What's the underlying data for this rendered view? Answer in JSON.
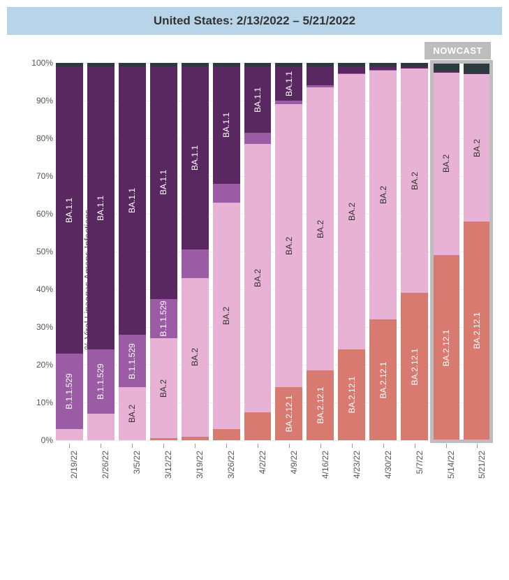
{
  "title": "United States: 2/13/2022 – 5/21/2022",
  "y_axis_title": "% Viral Lineages Among Infections",
  "nowcast_label": "NOWCAST",
  "variants": {
    "other": {
      "color": "#2d3a3d"
    },
    "ba11": {
      "color": "#5a2860",
      "label": "BA.1.1"
    },
    "b11529": {
      "color": "#9b5ba5",
      "label": "B.1.1.529"
    },
    "ba2": {
      "color": "#e8b2d4",
      "label": "BA.2",
      "dark_text": true
    },
    "ba2121": {
      "color": "#d87a70",
      "label": "BA.2.12.1"
    }
  },
  "y_ticks": [
    0,
    10,
    20,
    30,
    40,
    50,
    60,
    70,
    80,
    90,
    100
  ],
  "y_max": 100,
  "nowcast_start_index": 12,
  "weeks": [
    {
      "date": "2/19/22",
      "stack": [
        {
          "v": "ba2121",
          "pct": 0.0
        },
        {
          "v": "ba2",
          "pct": 3.0
        },
        {
          "v": "b11529",
          "pct": 20.0,
          "show": true
        },
        {
          "v": "ba11",
          "pct": 76.0,
          "show": true
        },
        {
          "v": "other",
          "pct": 1.0
        }
      ]
    },
    {
      "date": "2/26/22",
      "stack": [
        {
          "v": "ba2121",
          "pct": 0.0
        },
        {
          "v": "ba2",
          "pct": 7.0
        },
        {
          "v": "b11529",
          "pct": 17.0,
          "show": true
        },
        {
          "v": "ba11",
          "pct": 75.0,
          "show": true
        },
        {
          "v": "other",
          "pct": 1.0
        }
      ]
    },
    {
      "date": "3/5/22",
      "stack": [
        {
          "v": "ba2121",
          "pct": 0.0
        },
        {
          "v": "ba2",
          "pct": 14.0,
          "show": true
        },
        {
          "v": "b11529",
          "pct": 14.0,
          "show": true
        },
        {
          "v": "ba11",
          "pct": 71.0,
          "show": true
        },
        {
          "v": "other",
          "pct": 1.0
        }
      ]
    },
    {
      "date": "3/12/22",
      "stack": [
        {
          "v": "ba2121",
          "pct": 0.5
        },
        {
          "v": "ba2",
          "pct": 26.5,
          "show": true
        },
        {
          "v": "b11529",
          "pct": 10.5,
          "show": true
        },
        {
          "v": "ba11",
          "pct": 61.5,
          "show": true
        },
        {
          "v": "other",
          "pct": 1.0
        }
      ]
    },
    {
      "date": "3/19/22",
      "stack": [
        {
          "v": "ba2121",
          "pct": 1.0
        },
        {
          "v": "ba2",
          "pct": 42.0,
          "show": true
        },
        {
          "v": "b11529",
          "pct": 7.5
        },
        {
          "v": "ba11",
          "pct": 48.5,
          "show": true
        },
        {
          "v": "other",
          "pct": 1.0
        }
      ]
    },
    {
      "date": "3/26/22",
      "stack": [
        {
          "v": "ba2121",
          "pct": 3.0
        },
        {
          "v": "ba2",
          "pct": 60.0,
          "show": true
        },
        {
          "v": "b11529",
          "pct": 5.0
        },
        {
          "v": "ba11",
          "pct": 31.0,
          "show": true
        },
        {
          "v": "other",
          "pct": 1.0
        }
      ]
    },
    {
      "date": "4/2/22",
      "stack": [
        {
          "v": "ba2121",
          "pct": 7.5
        },
        {
          "v": "ba2",
          "pct": 71.0,
          "show": true
        },
        {
          "v": "b11529",
          "pct": 3.0
        },
        {
          "v": "ba11",
          "pct": 17.5,
          "show": true
        },
        {
          "v": "other",
          "pct": 1.0
        }
      ]
    },
    {
      "date": "4/9/22",
      "stack": [
        {
          "v": "ba2121",
          "pct": 14.0,
          "show": true
        },
        {
          "v": "ba2",
          "pct": 75.0,
          "show": true
        },
        {
          "v": "b11529",
          "pct": 1.0
        },
        {
          "v": "ba11",
          "pct": 9.0,
          "show": true
        },
        {
          "v": "other",
          "pct": 1.0
        }
      ]
    },
    {
      "date": "4/16/22",
      "stack": [
        {
          "v": "ba2121",
          "pct": 18.5,
          "show": true
        },
        {
          "v": "ba2",
          "pct": 75.0,
          "show": true
        },
        {
          "v": "b11529",
          "pct": 0.5
        },
        {
          "v": "ba11",
          "pct": 5.0
        },
        {
          "v": "other",
          "pct": 1.0
        }
      ]
    },
    {
      "date": "4/23/22",
      "stack": [
        {
          "v": "ba2121",
          "pct": 24.0,
          "show": true
        },
        {
          "v": "ba2",
          "pct": 73.0,
          "show": true
        },
        {
          "v": "b11529",
          "pct": 0.2
        },
        {
          "v": "ba11",
          "pct": 1.8
        },
        {
          "v": "other",
          "pct": 1.0
        }
      ]
    },
    {
      "date": "4/30/22",
      "stack": [
        {
          "v": "ba2121",
          "pct": 32.0,
          "show": true
        },
        {
          "v": "ba2",
          "pct": 66.0,
          "show": true
        },
        {
          "v": "b11529",
          "pct": 0.1
        },
        {
          "v": "ba11",
          "pct": 0.9
        },
        {
          "v": "other",
          "pct": 1.0
        }
      ]
    },
    {
      "date": "5/7/22",
      "stack": [
        {
          "v": "ba2121",
          "pct": 39.0,
          "show": true
        },
        {
          "v": "ba2",
          "pct": 59.5,
          "show": true
        },
        {
          "v": "b11529",
          "pct": 0.0
        },
        {
          "v": "ba11",
          "pct": 0.5
        },
        {
          "v": "other",
          "pct": 1.0
        }
      ]
    },
    {
      "date": "5/14/22",
      "nowcast": true,
      "stack": [
        {
          "v": "ba2121",
          "pct": 49.0,
          "show": true
        },
        {
          "v": "ba2",
          "pct": 48.5,
          "show": true
        },
        {
          "v": "b11529",
          "pct": 0.0
        },
        {
          "v": "ba11",
          "pct": 0.5
        },
        {
          "v": "other",
          "pct": 2.0
        }
      ]
    },
    {
      "date": "5/21/22",
      "nowcast": true,
      "stack": [
        {
          "v": "ba2121",
          "pct": 58.0,
          "show": true
        },
        {
          "v": "ba2",
          "pct": 39.0,
          "show": true
        },
        {
          "v": "b11529",
          "pct": 0.0
        },
        {
          "v": "ba11",
          "pct": 0.3
        },
        {
          "v": "other",
          "pct": 2.7
        }
      ]
    }
  ]
}
